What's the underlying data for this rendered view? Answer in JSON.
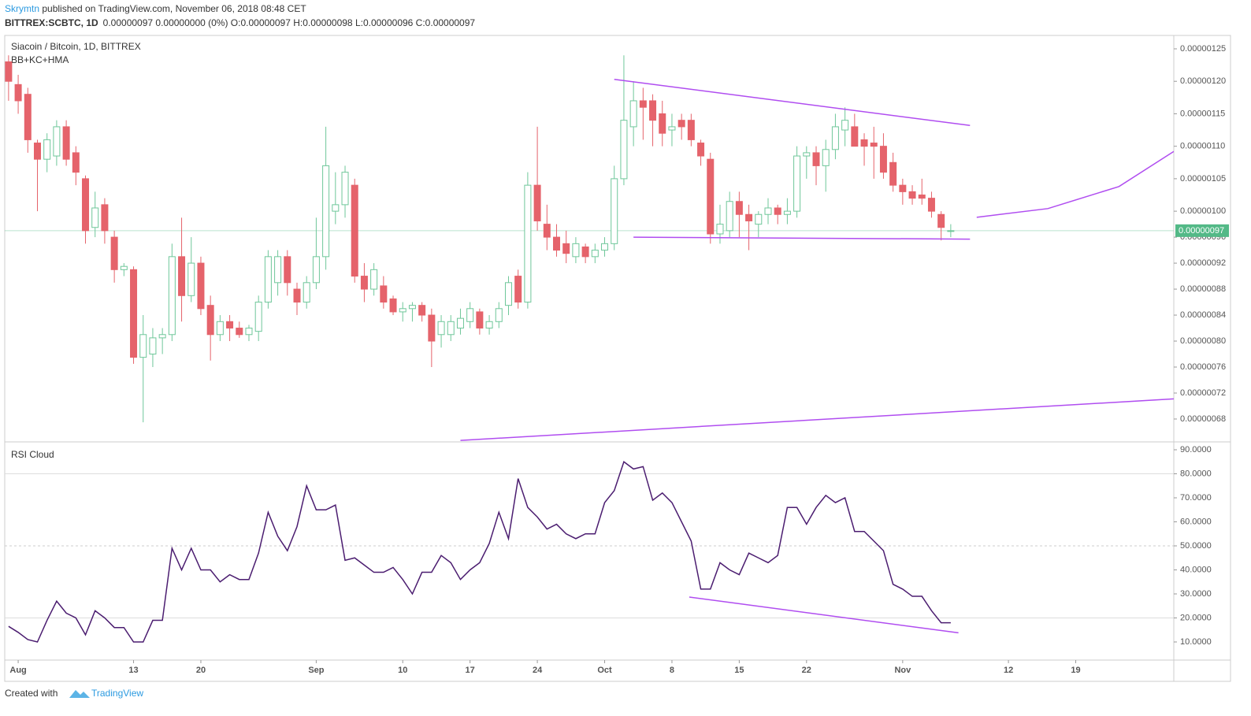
{
  "header": {
    "author": "Skrymtn",
    "published": " published on TradingView.com, November 06, 2018 08:48 CET",
    "symbol": "BITTREX:SCBTC, 1D",
    "quote": "0.00000097 0.00000000 (0%) O:0.00000097 H:0.00000098 L:0.00000096 C:0.00000097"
  },
  "footer": {
    "created": "Created with",
    "brand": "TradingView"
  },
  "chart_data": [
    {
      "type": "candlestick",
      "title": "Siacoin / Bitcoin, 1D, BITTREX",
      "subtitle": "BB+KC+HMA",
      "open": [
        1.23e-06,
        1.195e-06,
        1.18e-06,
        1.105e-06,
        1.08e-06,
        1.085e-06,
        1.13e-06,
        1.09e-06,
        1.05e-06,
        9.75e-07,
        1.01e-06,
        9.6e-07,
        9.1e-07,
        9.1e-07,
        7.75e-07,
        7.8e-07,
        8.05e-07,
        8.1e-07,
        9.3e-07,
        8.7e-07,
        9.2e-07,
        8.55e-07,
        8.1e-07,
        8.3e-07,
        8.2e-07,
        8.1e-07,
        8.15e-07,
        8.6e-07,
        8.9e-07,
        9.3e-07,
        8.8e-07,
        8.6e-07,
        8.9e-07,
        9.3e-07,
        1e-06,
        1.01e-06,
        1.04e-06,
        9e-07,
        8.8e-07,
        8.85e-07,
        8.65e-07,
        8.45e-07,
        8.5e-07,
        8.55e-07,
        8.4e-07,
        8.1e-07,
        8.1e-07,
        8.2e-07,
        8.3e-07,
        8.45e-07,
        8.2e-07,
        8.3e-07,
        8.55e-07,
        9e-07,
        8.6e-07,
        1.04e-06,
        9.8e-07,
        9.6e-07,
        9.5e-07,
        9.3e-07,
        9.45e-07,
        9.3e-07,
        9.4e-07,
        9.5e-07,
        1.05e-06,
        1.13e-06,
        1.17e-06,
        1.17e-06,
        1.15e-06,
        1.125e-06,
        1.14e-06,
        1.14e-06,
        1.105e-06,
        1.08e-06,
        9.65e-07,
        9.7e-07,
        1.015e-06,
        9.95e-07,
        9.8e-07,
        9.95e-07,
        1.005e-06,
        9.95e-07,
        1e-06,
        1.085e-06,
        1.09e-06,
        1.07e-06,
        1.095e-06,
        1.125e-06,
        1.13e-06,
        1.11e-06,
        1.105e-06,
        1.1e-06,
        1.075e-06,
        1.04e-06,
        1.03e-06,
        1.025e-06,
        1.02e-06,
        9.95e-07,
        9.7e-07
      ],
      "high": [
        1.24e-06,
        1.21e-06,
        1.19e-06,
        1.11e-06,
        1.12e-06,
        1.14e-06,
        1.14e-06,
        1.1e-06,
        1.055e-06,
        1.03e-06,
        1.02e-06,
        9.7e-07,
        9.2e-07,
        9.15e-07,
        8.4e-07,
        8.2e-07,
        8.2e-07,
        9.5e-07,
        9.9e-07,
        9.6e-07,
        9.3e-07,
        8.7e-07,
        8.4e-07,
        8.4e-07,
        8.3e-07,
        8.25e-07,
        8.7e-07,
        9.4e-07,
        9.4e-07,
        9.4e-07,
        8.9e-07,
        9e-07,
        9.9e-07,
        1.13e-06,
        1.06e-06,
        1.07e-06,
        1.05e-06,
        9.2e-07,
        9.2e-07,
        9e-07,
        8.7e-07,
        8.6e-07,
        8.6e-07,
        8.6e-07,
        8.5e-07,
        8.4e-07,
        8.4e-07,
        8.5e-07,
        8.6e-07,
        8.5e-07,
        8.4e-07,
        8.6e-07,
        9e-07,
        9.1e-07,
        1.06e-06,
        1.13e-06,
        1.01e-06,
        9.8e-07,
        9.7e-07,
        9.6e-07,
        9.5e-07,
        9.5e-07,
        9.6e-07,
        1.07e-06,
        1.24e-06,
        1.2e-06,
        1.19e-06,
        1.18e-06,
        1.17e-06,
        1.15e-06,
        1.15e-06,
        1.15e-06,
        1.11e-06,
        1.09e-06,
        1.01e-06,
        1.03e-06,
        1.03e-06,
        1.01e-06,
        1e-06,
        1.02e-06,
        1.01e-06,
        1.02e-06,
        1.1e-06,
        1.1e-06,
        1.1e-06,
        1.11e-06,
        1.15e-06,
        1.16e-06,
        1.15e-06,
        1.12e-06,
        1.13e-06,
        1.12e-06,
        1.09e-06,
        1.05e-06,
        1.04e-06,
        1.05e-06,
        1.03e-06,
        1e-06,
        9.8e-07
      ],
      "low": [
        1.17e-06,
        1.15e-06,
        1.09e-06,
        1e-06,
        1.06e-06,
        1.07e-06,
        1.07e-06,
        1.04e-06,
        9.5e-07,
        9.6e-07,
        9.5e-07,
        8.9e-07,
        9e-07,
        7.65e-07,
        6.75e-07,
        7.6e-07,
        7.8e-07,
        8e-07,
        8.3e-07,
        8.6e-07,
        8.4e-07,
        7.7e-07,
        8e-07,
        8e-07,
        8.05e-07,
        8e-07,
        8e-07,
        8.5e-07,
        8.7e-07,
        8.7e-07,
        8.4e-07,
        8.5e-07,
        8.8e-07,
        9.1e-07,
        9.8e-07,
        9.9e-07,
        8.9e-07,
        8.6e-07,
        8.7e-07,
        8.5e-07,
        8.4e-07,
        8.3e-07,
        8.3e-07,
        8.3e-07,
        7.6e-07,
        7.9e-07,
        8e-07,
        8.1e-07,
        8.2e-07,
        8.1e-07,
        8.1e-07,
        8.2e-07,
        8.4e-07,
        8.5e-07,
        8.5e-07,
        9.7e-07,
        9.4e-07,
        9.3e-07,
        9.2e-07,
        9.2e-07,
        9.2e-07,
        9.2e-07,
        9.3e-07,
        9.4e-07,
        1.04e-06,
        1.1e-06,
        1.11e-06,
        1.1e-06,
        1.1e-06,
        1.1e-06,
        1.11e-06,
        1.1e-06,
        1.07e-06,
        9.5e-07,
        9.5e-07,
        9.6e-07,
        9.6e-07,
        9.4e-07,
        9.6e-07,
        9.8e-07,
        9.8e-07,
        9.8e-07,
        9.9e-07,
        1.05e-06,
        1.04e-06,
        1.03e-06,
        1.08e-06,
        1.1e-06,
        1.1e-06,
        1.07e-06,
        1.05e-06,
        1.05e-06,
        1.03e-06,
        1.01e-06,
        1.01e-06,
        1.01e-06,
        9.9e-07,
        9.55e-07,
        9.6e-07
      ],
      "close": [
        1.2e-06,
        1.17e-06,
        1.11e-06,
        1.08e-06,
        1.11e-06,
        1.13e-06,
        1.08e-06,
        1.06e-06,
        9.7e-07,
        1.005e-06,
        9.7e-07,
        9.1e-07,
        9.15e-07,
        7.75e-07,
        8.1e-07,
        8.05e-07,
        8.1e-07,
        9.3e-07,
        8.7e-07,
        9.2e-07,
        8.5e-07,
        8.1e-07,
        8.3e-07,
        8.2e-07,
        8.1e-07,
        8.2e-07,
        8.6e-07,
        9.3e-07,
        9.3e-07,
        8.9e-07,
        8.6e-07,
        8.9e-07,
        9.3e-07,
        1.07e-06,
        1.01e-06,
        1.06e-06,
        9e-07,
        8.8e-07,
        9.1e-07,
        8.6e-07,
        8.45e-07,
        8.5e-07,
        8.55e-07,
        8.4e-07,
        8e-07,
        8.3e-07,
        8.3e-07,
        8.35e-07,
        8.5e-07,
        8.2e-07,
        8.3e-07,
        8.5e-07,
        8.9e-07,
        8.6e-07,
        1.04e-06,
        9.85e-07,
        9.6e-07,
        9.4e-07,
        9.35e-07,
        9.5e-07,
        9.3e-07,
        9.4e-07,
        9.5e-07,
        1.05e-06,
        1.14e-06,
        1.17e-06,
        1.16e-06,
        1.14e-06,
        1.12e-06,
        1.13e-06,
        1.13e-06,
        1.11e-06,
        1.085e-06,
        9.65e-07,
        9.8e-07,
        1.015e-06,
        9.95e-07,
        9.85e-07,
        9.95e-07,
        1.005e-06,
        9.95e-07,
        1e-06,
        1.085e-06,
        1.09e-06,
        1.07e-06,
        1.095e-06,
        1.13e-06,
        1.14e-06,
        1.1e-06,
        1.1e-06,
        1.1e-06,
        1.06e-06,
        1.04e-06,
        1.03e-06,
        1.02e-06,
        1.02e-06,
        1e-06,
        9.75e-07,
        9.7e-07
      ],
      "up_color": "#6fc79a",
      "down_color": "#e5636b",
      "xlim": [
        -0.4,
        121.2
      ],
      "ylim": [
        6.46e-07,
        1.2706e-06
      ],
      "yticks": [
        {
          "value": 1.25e-06,
          "label": "0.00000125"
        },
        {
          "value": 1.2e-06,
          "label": "0.00000120"
        },
        {
          "value": 1.15e-06,
          "label": "0.00000115"
        },
        {
          "value": 1.1e-06,
          "label": "0.00000110"
        },
        {
          "value": 1.05e-06,
          "label": "0.00000105"
        },
        {
          "value": 1e-06,
          "label": "0.00000100"
        },
        {
          "value": 9.6e-07,
          "label": "0.00000096"
        },
        {
          "value": 9.2e-07,
          "label": "0.00000092"
        },
        {
          "value": 8.8e-07,
          "label": "0.00000088"
        },
        {
          "value": 8.4e-07,
          "label": "0.00000084"
        },
        {
          "value": 8e-07,
          "label": "0.00000080"
        },
        {
          "value": 7.6e-07,
          "label": "0.00000076"
        },
        {
          "value": 7.2e-07,
          "label": "0.00000072"
        },
        {
          "value": 6.8e-07,
          "label": "0.00000068"
        }
      ],
      "last_price": {
        "value": 9.7e-07,
        "label": "0.00000097"
      },
      "last_price_color": "#53b987",
      "trend_lines": [
        {
          "color": "#b04df0",
          "x": [
            63,
            100
          ],
          "y": [
            1.203e-06,
            1.132e-06
          ]
        },
        {
          "color": "#b04df0",
          "x": [
            65,
            100
          ],
          "y": [
            9.6e-07,
            9.57e-07
          ]
        },
        {
          "color": "#b04df0",
          "x": [
            47,
            121.2
          ],
          "y": [
            6.47e-07,
            7.11e-07
          ]
        },
        {
          "color": "#b04df0",
          "x": [
            100.7,
            108.1,
            115.5,
            121.2
          ],
          "y": [
            9.906e-07,
            1.004e-06,
            1.038e-06,
            1.092e-06
          ]
        }
      ]
    },
    {
      "type": "line",
      "title": "RSI Cloud",
      "color": "#4b1d70",
      "values": [
        16.5,
        14,
        11,
        10,
        19,
        27,
        22,
        20,
        13,
        23,
        20,
        16,
        16,
        10,
        10,
        19,
        19,
        49,
        40,
        49,
        40,
        40,
        35,
        38,
        36,
        36,
        47,
        64,
        54,
        48,
        58,
        75,
        65,
        65,
        67,
        44,
        45,
        42,
        39,
        39,
        41,
        36,
        30,
        39,
        39,
        46,
        43,
        36,
        40,
        43,
        51,
        64,
        53,
        78,
        66,
        62,
        57,
        59,
        55,
        53,
        55,
        55,
        68,
        73,
        85,
        82,
        83,
        69,
        72,
        68,
        60,
        52,
        32,
        32,
        43,
        40,
        38,
        47,
        45,
        43,
        46,
        66,
        66,
        59,
        66,
        71,
        68,
        70,
        56,
        56,
        52,
        48,
        34,
        32,
        29,
        29,
        23,
        18,
        18
      ],
      "xlim": [
        -0.4,
        121.2
      ],
      "ylim": [
        2.46,
        92.95
      ],
      "yticks": [
        {
          "value": 90,
          "label": "90.0000"
        },
        {
          "value": 80,
          "label": "80.0000"
        },
        {
          "value": 70,
          "label": "70.0000"
        },
        {
          "value": 60,
          "label": "60.0000"
        },
        {
          "value": 50,
          "label": "50.0000"
        },
        {
          "value": 40,
          "label": "40.0000"
        },
        {
          "value": 30,
          "label": "30.0000"
        },
        {
          "value": 20,
          "label": "20.0000"
        },
        {
          "value": 10,
          "label": "10.0000"
        }
      ],
      "levels": [
        80,
        20
      ],
      "midline": 50,
      "xticks": [
        {
          "value": 1,
          "label": "Aug"
        },
        13,
        20,
        {
          "value": 32,
          "label": "Sep"
        },
        {
          "value": 41,
          "label": "10"
        },
        {
          "value": 48,
          "label": "17"
        },
        {
          "value": 55,
          "label": "24"
        },
        {
          "value": 62,
          "label": "Oct"
        },
        {
          "value": 69,
          "label": "8"
        },
        {
          "value": 76,
          "label": "15"
        },
        {
          "value": 83,
          "label": "22"
        },
        {
          "value": 93,
          "label": "Nov"
        },
        {
          "value": 104,
          "label": "12"
        },
        {
          "value": 111,
          "label": "19"
        }
      ],
      "trend_lines": [
        {
          "color": "#b04df0",
          "x": [
            70.8,
            98.8
          ],
          "y": [
            28.7,
            13.8
          ]
        }
      ]
    }
  ]
}
